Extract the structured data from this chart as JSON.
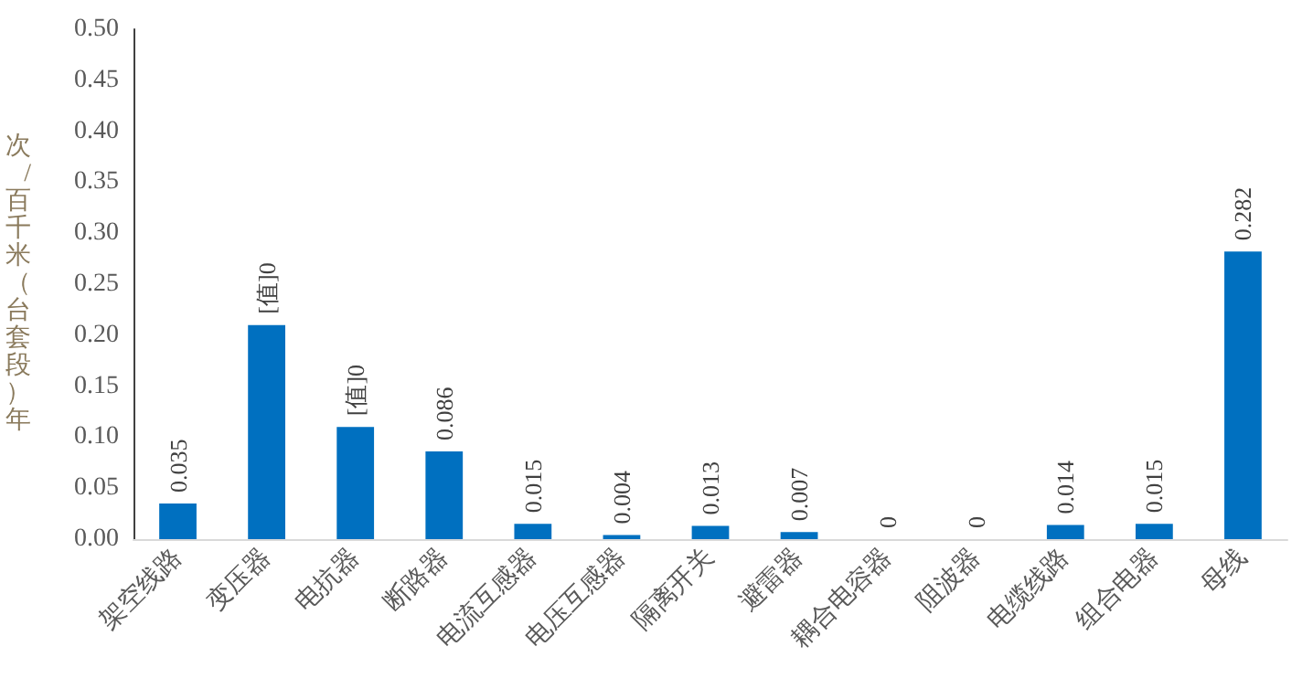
{
  "chart_data": {
    "type": "bar",
    "ylabel": "次/百千米（台套段）年",
    "categories": [
      "架空线路",
      "变压器",
      "电抗器",
      "断路器",
      "电流互感器",
      "电压互感器",
      "隔离开关",
      "避雷器",
      "耦合电容器",
      "阻波器",
      "电缆线路",
      "组合电器",
      "母线"
    ],
    "values": [
      0.035,
      0.21,
      0.11,
      0.086,
      0.015,
      0.004,
      0.013,
      0.007,
      0,
      0,
      0.014,
      0.015,
      0.282
    ],
    "value_labels": [
      "0.035",
      "[值]0",
      "[值]0",
      "0.086",
      "0.015",
      "0.004",
      "0.013",
      "0.007",
      "0",
      "0",
      "0.014",
      "0.015",
      "0.282"
    ],
    "color": "#0070c0",
    "ylim": [
      0,
      0.5
    ],
    "yticks": [
      {
        "value": 0,
        "label": "0.00"
      },
      {
        "value": 0.05,
        "label": "0.05"
      },
      {
        "value": 0.1,
        "label": "0.10"
      },
      {
        "value": 0.15,
        "label": "0.15"
      },
      {
        "value": 0.2,
        "label": "0.20"
      },
      {
        "value": 0.25,
        "label": "0.25"
      },
      {
        "value": 0.3,
        "label": "0.30"
      },
      {
        "value": 0.35,
        "label": "0.35"
      },
      {
        "value": 0.4,
        "label": "0.40"
      },
      {
        "value": 0.45,
        "label": "0.45"
      },
      {
        "value": 0.5,
        "label": "0.50"
      }
    ],
    "grid": false
  }
}
